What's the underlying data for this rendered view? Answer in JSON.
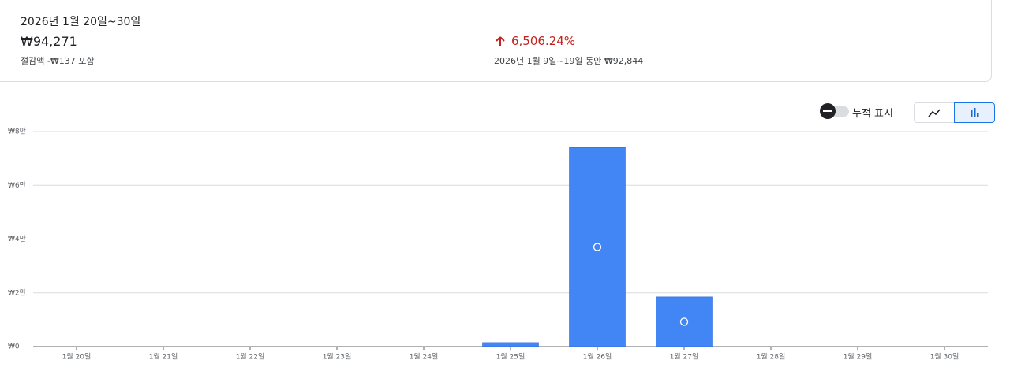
{
  "summary": {
    "period": "2026년 1월 20일~30일",
    "total": "₩94,271",
    "savings_note": "절감액 -₩137 포함"
  },
  "comparison": {
    "change": "6,506.24%",
    "previous_note": "2026년 1월 9일~19일 동안 ₩92,844"
  },
  "controls": {
    "cumulative_label": "누적 표시"
  },
  "chart_data": {
    "type": "bar",
    "color": "#4285f4",
    "grid": true,
    "categories": [
      "1월 20일",
      "1월 21일",
      "1월 22일",
      "1월 23일",
      "1월 24일",
      "1월 25일",
      "1월 26일",
      "1월 27일",
      "1월 28일",
      "1월 29일",
      "1월 30일"
    ],
    "values": [
      0,
      0,
      0,
      0,
      0,
      1500,
      74100,
      18500,
      0,
      0,
      0
    ],
    "ylim": [
      0,
      80000
    ],
    "yticks": [
      {
        "value": 0,
        "label": "₩0"
      },
      {
        "value": 20000,
        "label": "₩2만"
      },
      {
        "value": 40000,
        "label": "₩4만"
      },
      {
        "value": 60000,
        "label": "₩6만"
      },
      {
        "value": 80000,
        "label": "₩8만"
      }
    ]
  }
}
